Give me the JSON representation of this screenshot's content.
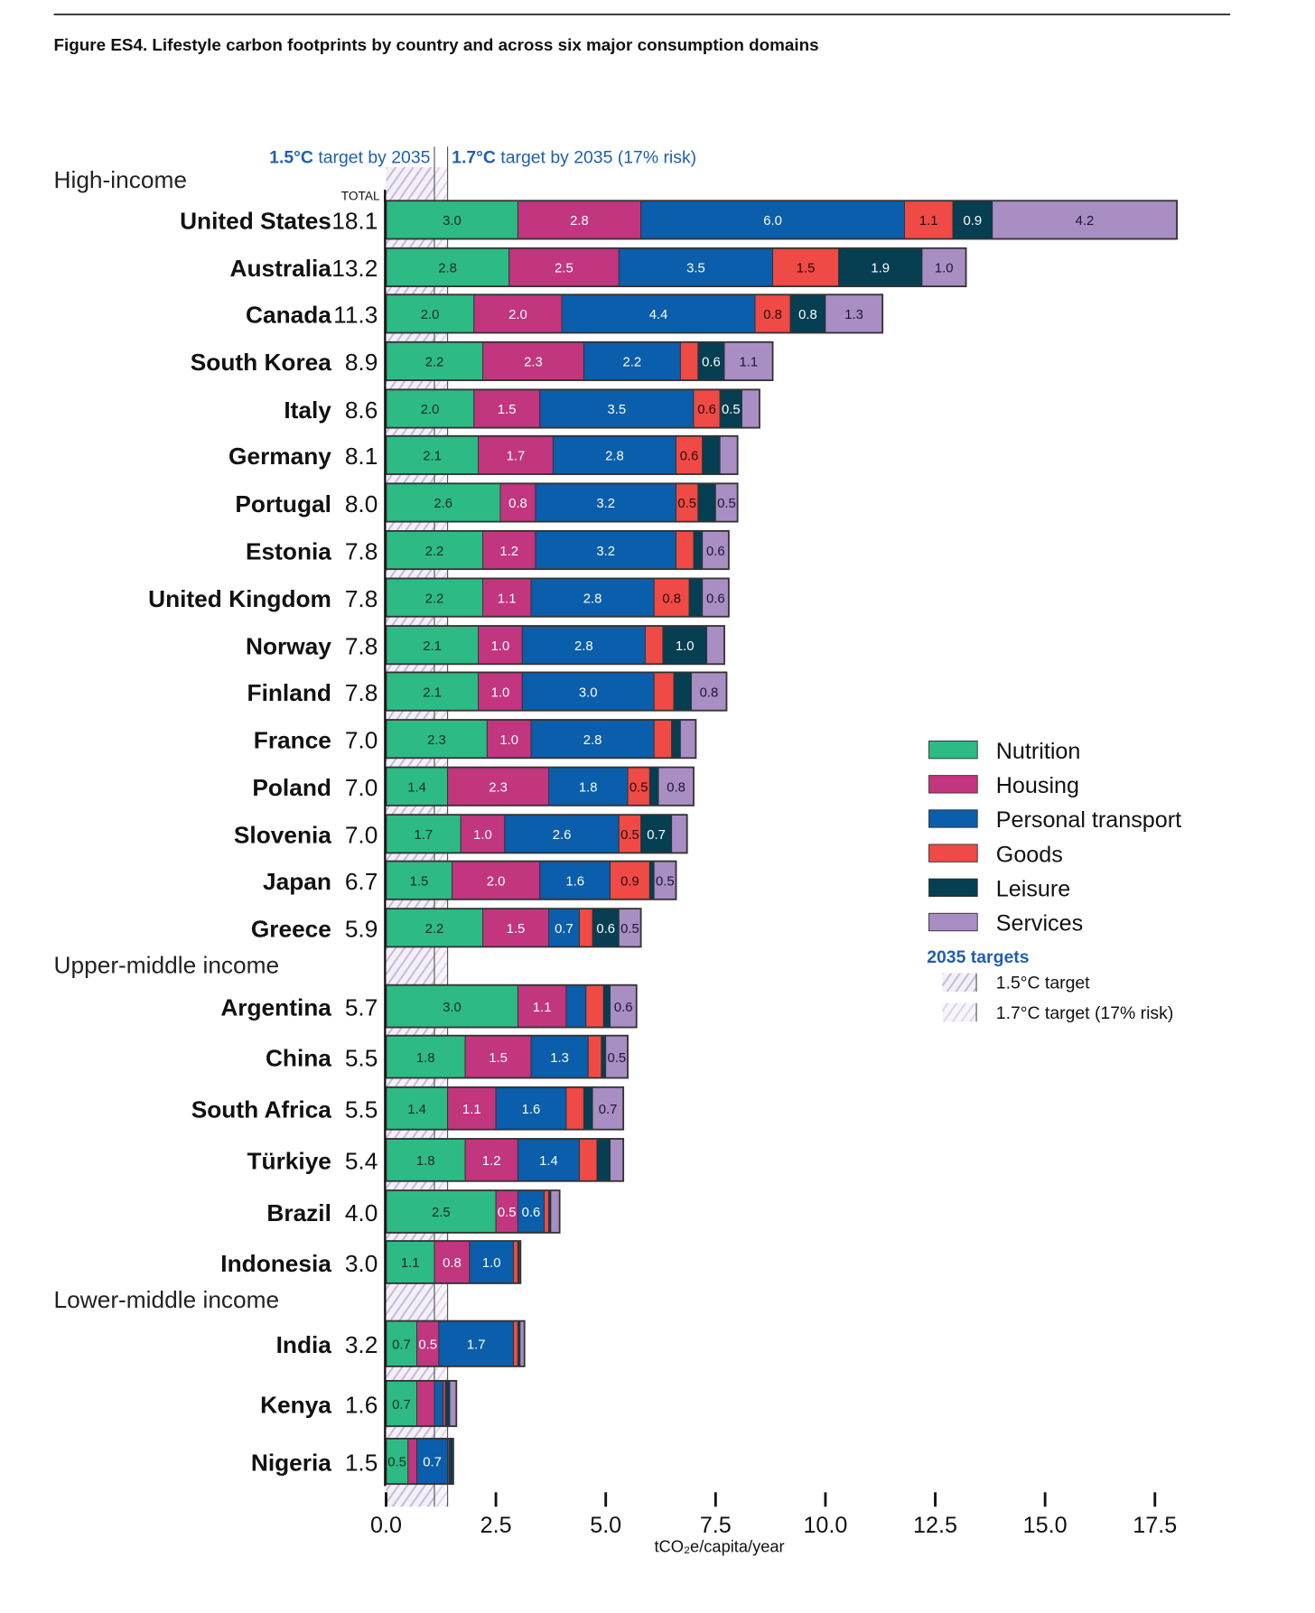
{
  "chart_data": {
    "type": "bar",
    "orientation": "horizontal-stacked",
    "title": "Figure ES4. Lifestyle carbon footprints by country and across six major consumption domains",
    "xlabel": "tCO₂e/capita/year",
    "total_label": "TOTAL",
    "xlim": [
      0,
      18.5
    ],
    "xticks": [
      "0.0",
      "2.5",
      "5.0",
      "7.5",
      "10.0",
      "12.5",
      "15.0",
      "17.5"
    ],
    "xtick_values": [
      0,
      2.5,
      5,
      7.5,
      10,
      12.5,
      15,
      17.5
    ],
    "targets": [
      {
        "label_bold": "1.5°C",
        "label": " target by 2035",
        "value": 1.1
      },
      {
        "label_bold": "1.7°C",
        "label": " target by 2035 (17% risk)",
        "value": 1.4
      }
    ],
    "series": [
      {
        "name": "Nutrition",
        "color": "#2dba84",
        "text": "#13301f"
      },
      {
        "name": "Housing",
        "color": "#c2357f",
        "text": "#ffffff"
      },
      {
        "name": "Personal transport",
        "color": "#0a5eab",
        "text": "#ffffff"
      },
      {
        "name": "Goods",
        "color": "#ef4a45",
        "text": "#2a0a0a"
      },
      {
        "name": "Leisure",
        "color": "#063e52",
        "text": "#ffffff"
      },
      {
        "name": "Services",
        "color": "#a98ec4",
        "text": "#1e1530"
      }
    ],
    "groups": [
      {
        "name": "High-income",
        "countries": [
          {
            "name": "United States",
            "total": "18.1",
            "values": [
              3.0,
              2.8,
              6.0,
              1.1,
              0.9,
              4.2
            ]
          },
          {
            "name": "Australia",
            "total": "13.2",
            "values": [
              2.8,
              2.5,
              3.5,
              1.5,
              1.9,
              1.0
            ]
          },
          {
            "name": "Canada",
            "total": "11.3",
            "values": [
              2.0,
              2.0,
              4.4,
              0.8,
              0.8,
              1.3
            ]
          },
          {
            "name": "South Korea",
            "total": "8.9",
            "values": [
              2.2,
              2.3,
              2.2,
              0.4,
              0.6,
              1.1
            ]
          },
          {
            "name": "Italy",
            "total": "8.6",
            "values": [
              2.0,
              1.5,
              3.5,
              0.6,
              0.5,
              0.4
            ]
          },
          {
            "name": "Germany",
            "total": "8.1",
            "values": [
              2.1,
              1.7,
              2.8,
              0.6,
              0.4,
              0.4
            ]
          },
          {
            "name": "Portugal",
            "total": "8.0",
            "values": [
              2.6,
              0.8,
              3.2,
              0.5,
              0.4,
              0.5
            ]
          },
          {
            "name": "Estonia",
            "total": "7.8",
            "values": [
              2.2,
              1.2,
              3.2,
              0.4,
              0.2,
              0.6
            ]
          },
          {
            "name": "United Kingdom",
            "total": "7.8",
            "values": [
              2.2,
              1.1,
              2.8,
              0.8,
              0.3,
              0.6
            ]
          },
          {
            "name": "Norway",
            "total": "7.8",
            "values": [
              2.1,
              1.0,
              2.8,
              0.4,
              1.0,
              0.4
            ]
          },
          {
            "name": "Finland",
            "total": "7.8",
            "values": [
              2.1,
              1.0,
              3.0,
              0.45,
              0.4,
              0.8
            ]
          },
          {
            "name": "France",
            "total": "7.0",
            "values": [
              2.3,
              1.0,
              2.8,
              0.4,
              0.2,
              0.35
            ]
          },
          {
            "name": "Poland",
            "total": "7.0",
            "values": [
              1.4,
              2.3,
              1.8,
              0.5,
              0.2,
              0.8
            ]
          },
          {
            "name": "Slovenia",
            "total": "7.0",
            "values": [
              1.7,
              1.0,
              2.6,
              0.5,
              0.7,
              0.35
            ]
          },
          {
            "name": "Japan",
            "total": "6.7",
            "values": [
              1.5,
              2.0,
              1.6,
              0.9,
              0.1,
              0.5
            ]
          },
          {
            "name": "Greece",
            "total": "5.9",
            "values": [
              2.2,
              1.5,
              0.7,
              0.3,
              0.6,
              0.5
            ]
          }
        ]
      },
      {
        "name": "Upper-middle income",
        "countries": [
          {
            "name": "Argentina",
            "total": "5.7",
            "values": [
              3.0,
              1.1,
              0.45,
              0.4,
              0.15,
              0.6
            ]
          },
          {
            "name": "China",
            "total": "5.5",
            "values": [
              1.8,
              1.5,
              1.3,
              0.3,
              0.1,
              0.5
            ]
          },
          {
            "name": "South Africa",
            "total": "5.5",
            "values": [
              1.4,
              1.1,
              1.6,
              0.4,
              0.2,
              0.7
            ]
          },
          {
            "name": "Türkiye",
            "total": "5.4",
            "values": [
              1.8,
              1.2,
              1.4,
              0.4,
              0.3,
              0.3
            ]
          },
          {
            "name": "Brazil",
            "total": "4.0",
            "values": [
              2.5,
              0.5,
              0.6,
              0.1,
              0.05,
              0.2
            ]
          },
          {
            "name": "Indonesia",
            "total": "3.0",
            "values": [
              1.1,
              0.8,
              1.0,
              0.1,
              0.03,
              0.03
            ]
          }
        ]
      },
      {
        "name": "Lower-middle income",
        "countries": [
          {
            "name": "India",
            "total": "3.2",
            "values": [
              0.7,
              0.5,
              1.7,
              0.1,
              0.05,
              0.1
            ]
          },
          {
            "name": "Kenya",
            "total": "1.6",
            "values": [
              0.7,
              0.4,
              0.2,
              0.05,
              0.1,
              0.15
            ]
          },
          {
            "name": "Nigeria",
            "total": "1.5",
            "values": [
              0.5,
              0.2,
              0.7,
              0.03,
              0.1,
              0.0
            ]
          }
        ]
      }
    ],
    "legend": {
      "placement": "right",
      "targets_title": "2035 targets",
      "target_items": [
        "1.5°C target",
        "1.7°C target (17% risk)"
      ]
    }
  }
}
